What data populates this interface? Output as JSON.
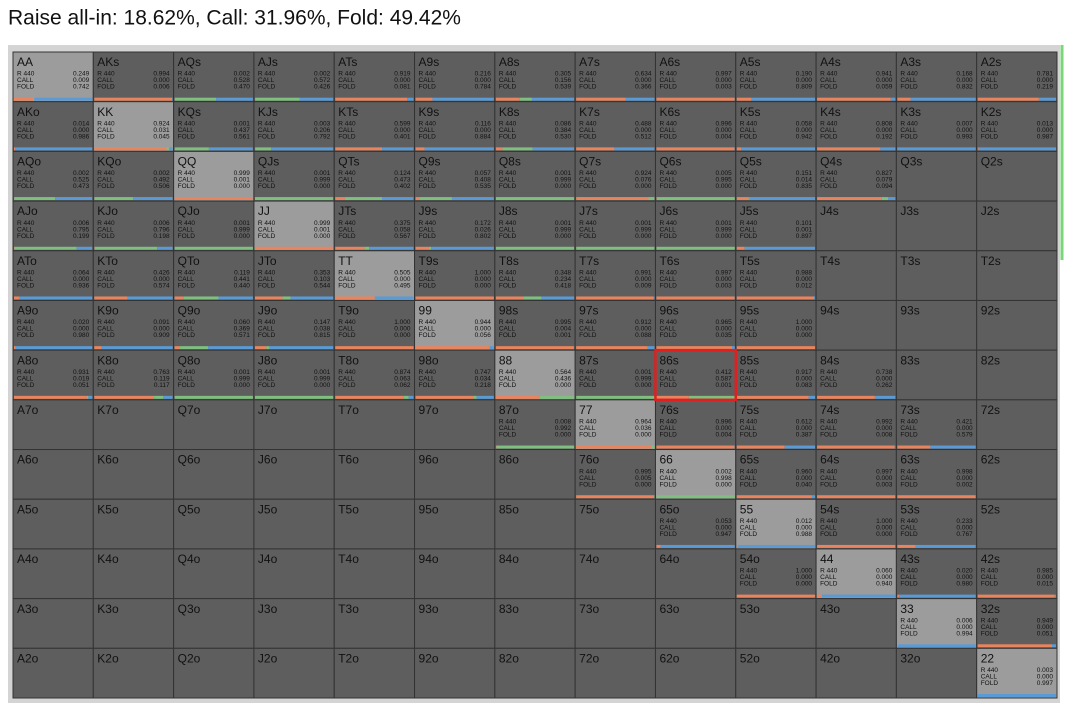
{
  "header": {
    "title": "Raise all-in: 18.62%, Call: 31.96%, Fold: 49.42%"
  },
  "grid": {
    "action_labels": [
      "R 440",
      "CALL",
      "FOLD"
    ],
    "rows": [
      [
        {
          "hand": "AA",
          "values": [
            "0.249",
            "0.009",
            "0.742"
          ]
        },
        {
          "hand": "AKs",
          "values": [
            "0.994",
            "0.000",
            "0.006"
          ]
        },
        {
          "hand": "AQs",
          "values": [
            "0.002",
            "0.528",
            "0.470"
          ]
        },
        {
          "hand": "AJs",
          "values": [
            "0.002",
            "0.572",
            "0.426"
          ]
        },
        {
          "hand": "ATs",
          "values": [
            "0.919",
            "0.000",
            "0.081"
          ]
        },
        {
          "hand": "A9s",
          "values": [
            "0.216",
            "0.000",
            "0.784"
          ]
        },
        {
          "hand": "A8s",
          "values": [
            "0.305",
            "0.156",
            "0.539"
          ]
        },
        {
          "hand": "A7s",
          "values": [
            "0.634",
            "0.000",
            "0.366"
          ]
        },
        {
          "hand": "A6s",
          "values": [
            "0.997",
            "0.000",
            "0.003"
          ]
        },
        {
          "hand": "A5s",
          "values": [
            "0.190",
            "0.000",
            "0.809"
          ]
        },
        {
          "hand": "A4s",
          "values": [
            "0.941",
            "0.000",
            "0.059"
          ]
        },
        {
          "hand": "A3s",
          "values": [
            "0.168",
            "0.000",
            "0.832"
          ]
        },
        {
          "hand": "A2s",
          "values": [
            "0.781",
            "0.000",
            "0.219"
          ]
        }
      ],
      [
        {
          "hand": "AKo",
          "values": [
            "0.014",
            "0.000",
            "0.986"
          ]
        },
        {
          "hand": "KK",
          "values": [
            "0.924",
            "0.031",
            "0.045"
          ]
        },
        {
          "hand": "KQs",
          "values": [
            "0.001",
            "0.437",
            "0.561"
          ]
        },
        {
          "hand": "KJs",
          "values": [
            "0.003",
            "0.206",
            "0.792"
          ]
        },
        {
          "hand": "KTs",
          "values": [
            "0.599",
            "0.000",
            "0.401"
          ]
        },
        {
          "hand": "K9s",
          "values": [
            "0.116",
            "0.000",
            "0.884"
          ]
        },
        {
          "hand": "K8s",
          "values": [
            "0.086",
            "0.384",
            "0.530"
          ]
        },
        {
          "hand": "K7s",
          "values": [
            "0.488",
            "0.000",
            "0.512"
          ]
        },
        {
          "hand": "K6s",
          "values": [
            "0.996",
            "0.000",
            "0.004"
          ]
        },
        {
          "hand": "K5s",
          "values": [
            "0.058",
            "0.000",
            "0.942"
          ]
        },
        {
          "hand": "K4s",
          "values": [
            "0.808",
            "0.000",
            "0.192"
          ]
        },
        {
          "hand": "K3s",
          "values": [
            "0.007",
            "0.000",
            "0.993"
          ]
        },
        {
          "hand": "K2s",
          "values": [
            "0.013",
            "0.000",
            "0.987"
          ]
        }
      ],
      [
        {
          "hand": "AQo",
          "values": [
            "0.002",
            "0.525",
            "0.473"
          ]
        },
        {
          "hand": "KQo",
          "values": [
            "0.002",
            "0.492",
            "0.506"
          ]
        },
        {
          "hand": "QQ",
          "values": [
            "0.999",
            "0.001",
            "0.000"
          ]
        },
        {
          "hand": "QJs",
          "values": [
            "0.001",
            "0.999",
            "0.000"
          ]
        },
        {
          "hand": "QTs",
          "values": [
            "0.124",
            "0.473",
            "0.402"
          ]
        },
        {
          "hand": "Q9s",
          "values": [
            "0.057",
            "0.408",
            "0.535"
          ]
        },
        {
          "hand": "Q8s",
          "values": [
            "0.001",
            "0.999",
            "0.000"
          ]
        },
        {
          "hand": "Q7s",
          "values": [
            "0.924",
            "0.076",
            "0.000"
          ]
        },
        {
          "hand": "Q6s",
          "values": [
            "0.005",
            "0.995",
            "0.000"
          ]
        },
        {
          "hand": "Q5s",
          "values": [
            "0.151",
            "0.014",
            "0.835"
          ]
        },
        {
          "hand": "Q4s",
          "values": [
            "0.827",
            "0.079",
            "0.094"
          ]
        },
        {
          "hand": "Q3s"
        },
        {
          "hand": "Q2s"
        }
      ],
      [
        {
          "hand": "AJo",
          "values": [
            "0.006",
            "0.795",
            "0.199"
          ]
        },
        {
          "hand": "KJo",
          "values": [
            "0.006",
            "0.796",
            "0.198"
          ]
        },
        {
          "hand": "QJo",
          "values": [
            "0.001",
            "0.999",
            "0.000"
          ]
        },
        {
          "hand": "JJ",
          "values": [
            "0.999",
            "0.001",
            "0.000"
          ]
        },
        {
          "hand": "JTs",
          "values": [
            "0.375",
            "0.058",
            "0.567"
          ]
        },
        {
          "hand": "J9s",
          "values": [
            "0.172",
            "0.026",
            "0.802"
          ]
        },
        {
          "hand": "J8s",
          "values": [
            "0.001",
            "0.999",
            "0.000"
          ]
        },
        {
          "hand": "J7s",
          "values": [
            "0.001",
            "0.999",
            "0.000"
          ]
        },
        {
          "hand": "J6s",
          "values": [
            "0.001",
            "0.999",
            "0.000"
          ]
        },
        {
          "hand": "J5s",
          "values": [
            "0.101",
            "0.001",
            "0.897"
          ]
        },
        {
          "hand": "J4s"
        },
        {
          "hand": "J3s"
        },
        {
          "hand": "J2s"
        }
      ],
      [
        {
          "hand": "ATo",
          "values": [
            "0.064",
            "0.000",
            "0.936"
          ]
        },
        {
          "hand": "KTo",
          "values": [
            "0.426",
            "0.000",
            "0.574"
          ]
        },
        {
          "hand": "QTo",
          "values": [
            "0.119",
            "0.441",
            "0.440"
          ]
        },
        {
          "hand": "JTo",
          "values": [
            "0.353",
            "0.103",
            "0.544"
          ]
        },
        {
          "hand": "TT",
          "values": [
            "0.505",
            "0.000",
            "0.495"
          ]
        },
        {
          "hand": "T9s",
          "values": [
            "1.000",
            "0.000",
            "0.000"
          ]
        },
        {
          "hand": "T8s",
          "values": [
            "0.348",
            "0.234",
            "0.418"
          ]
        },
        {
          "hand": "T7s",
          "values": [
            "0.991",
            "0.000",
            "0.009"
          ]
        },
        {
          "hand": "T6s",
          "values": [
            "0.997",
            "0.000",
            "0.003"
          ]
        },
        {
          "hand": "T5s",
          "values": [
            "0.988",
            "0.000",
            "0.012"
          ]
        },
        {
          "hand": "T4s"
        },
        {
          "hand": "T3s"
        },
        {
          "hand": "T2s"
        }
      ],
      [
        {
          "hand": "A9o",
          "values": [
            "0.020",
            "0.000",
            "0.980"
          ]
        },
        {
          "hand": "K9o",
          "values": [
            "0.091",
            "0.000",
            "0.909"
          ]
        },
        {
          "hand": "Q9o",
          "values": [
            "0.060",
            "0.369",
            "0.571"
          ]
        },
        {
          "hand": "J9o",
          "values": [
            "0.147",
            "0.038",
            "0.815"
          ]
        },
        {
          "hand": "T9o",
          "values": [
            "1.000",
            "0.000",
            "0.000"
          ]
        },
        {
          "hand": "99",
          "values": [
            "0.944",
            "0.000",
            "0.056"
          ]
        },
        {
          "hand": "98s",
          "values": [
            "0.995",
            "0.004",
            "0.001"
          ]
        },
        {
          "hand": "97s",
          "values": [
            "0.912",
            "0.000",
            "0.088"
          ]
        },
        {
          "hand": "96s",
          "values": [
            "0.965",
            "0.000",
            "0.035"
          ]
        },
        {
          "hand": "95s",
          "values": [
            "1.000",
            "0.000",
            "0.000"
          ]
        },
        {
          "hand": "94s"
        },
        {
          "hand": "93s"
        },
        {
          "hand": "92s"
        }
      ],
      [
        {
          "hand": "A8o",
          "values": [
            "0.931",
            "0.019",
            "0.051"
          ]
        },
        {
          "hand": "K8o",
          "values": [
            "0.763",
            "0.119",
            "0.117"
          ]
        },
        {
          "hand": "Q8o",
          "values": [
            "0.001",
            "0.999",
            "0.000"
          ]
        },
        {
          "hand": "J8o",
          "values": [
            "0.001",
            "0.999",
            "0.000"
          ]
        },
        {
          "hand": "T8o",
          "values": [
            "0.874",
            "0.063",
            "0.062"
          ]
        },
        {
          "hand": "98o",
          "values": [
            "0.747",
            "0.034",
            "0.218"
          ]
        },
        {
          "hand": "88",
          "values": [
            "0.564",
            "0.436",
            "0.000"
          ]
        },
        {
          "hand": "87s",
          "values": [
            "0.001",
            "0.999",
            "0.000"
          ]
        },
        {
          "hand": "86s",
          "values": [
            "0.412",
            "0.587",
            "0.001"
          ]
        },
        {
          "hand": "85s",
          "values": [
            "0.917",
            "0.000",
            "0.083"
          ]
        },
        {
          "hand": "84s",
          "values": [
            "0.738",
            "0.000",
            "0.262"
          ]
        },
        {
          "hand": "83s"
        },
        {
          "hand": "82s"
        }
      ],
      [
        {
          "hand": "A7o"
        },
        {
          "hand": "K7o"
        },
        {
          "hand": "Q7o"
        },
        {
          "hand": "J7o"
        },
        {
          "hand": "T7o"
        },
        {
          "hand": "97o"
        },
        {
          "hand": "87o",
          "values": [
            "0.008",
            "0.992",
            "0.000"
          ]
        },
        {
          "hand": "77",
          "values": [
            "0.964",
            "0.036",
            "0.000"
          ]
        },
        {
          "hand": "76s",
          "values": [
            "0.996",
            "0.000",
            "0.004"
          ]
        },
        {
          "hand": "75s",
          "values": [
            "0.612",
            "0.000",
            "0.387"
          ]
        },
        {
          "hand": "74s",
          "values": [
            "0.992",
            "0.000",
            "0.008"
          ]
        },
        {
          "hand": "73s",
          "values": [
            "0.421",
            "0.000",
            "0.579"
          ]
        },
        {
          "hand": "72s"
        }
      ],
      [
        {
          "hand": "A6o"
        },
        {
          "hand": "K6o"
        },
        {
          "hand": "Q6o"
        },
        {
          "hand": "J6o"
        },
        {
          "hand": "T6o"
        },
        {
          "hand": "96o"
        },
        {
          "hand": "86o"
        },
        {
          "hand": "76o",
          "values": [
            "0.995",
            "0.005",
            "0.000"
          ]
        },
        {
          "hand": "66",
          "values": [
            "0.002",
            "0.998",
            "0.000"
          ]
        },
        {
          "hand": "65s",
          "values": [
            "0.960",
            "0.000",
            "0.040"
          ]
        },
        {
          "hand": "64s",
          "values": [
            "0.997",
            "0.000",
            "0.003"
          ]
        },
        {
          "hand": "63s",
          "values": [
            "0.998",
            "0.000",
            "0.002"
          ]
        },
        {
          "hand": "62s"
        }
      ],
      [
        {
          "hand": "A5o"
        },
        {
          "hand": "K5o"
        },
        {
          "hand": "Q5o"
        },
        {
          "hand": "J5o"
        },
        {
          "hand": "T5o"
        },
        {
          "hand": "95o"
        },
        {
          "hand": "85o"
        },
        {
          "hand": "75o"
        },
        {
          "hand": "65o",
          "values": [
            "0.053",
            "0.000",
            "0.947"
          ]
        },
        {
          "hand": "55",
          "values": [
            "0.012",
            "0.000",
            "0.988"
          ]
        },
        {
          "hand": "54s",
          "values": [
            "1.000",
            "0.000",
            "0.000"
          ]
        },
        {
          "hand": "53s",
          "values": [
            "0.233",
            "0.000",
            "0.767"
          ]
        },
        {
          "hand": "52s"
        }
      ],
      [
        {
          "hand": "A4o"
        },
        {
          "hand": "K4o"
        },
        {
          "hand": "Q4o"
        },
        {
          "hand": "J4o"
        },
        {
          "hand": "T4o"
        },
        {
          "hand": "94o"
        },
        {
          "hand": "84o"
        },
        {
          "hand": "74o"
        },
        {
          "hand": "64o"
        },
        {
          "hand": "54o",
          "values": [
            "1.000",
            "0.000",
            "0.000"
          ]
        },
        {
          "hand": "44",
          "values": [
            "0.060",
            "0.000",
            "0.940"
          ]
        },
        {
          "hand": "43s",
          "values": [
            "0.020",
            "0.000",
            "0.980"
          ]
        },
        {
          "hand": "42s",
          "values": [
            "0.985",
            "0.000",
            "0.015"
          ]
        }
      ],
      [
        {
          "hand": "A3o"
        },
        {
          "hand": "K3o"
        },
        {
          "hand": "Q3o"
        },
        {
          "hand": "J3o"
        },
        {
          "hand": "T3o"
        },
        {
          "hand": "93o"
        },
        {
          "hand": "83o"
        },
        {
          "hand": "73o"
        },
        {
          "hand": "63o"
        },
        {
          "hand": "53o"
        },
        {
          "hand": "43o"
        },
        {
          "hand": "33",
          "values": [
            "0.006",
            "0.000",
            "0.994"
          ]
        },
        {
          "hand": "32s",
          "values": [
            "0.949",
            "0.000",
            "0.051"
          ]
        }
      ],
      [
        {
          "hand": "A2o"
        },
        {
          "hand": "K2o"
        },
        {
          "hand": "Q2o"
        },
        {
          "hand": "J2o"
        },
        {
          "hand": "T2o"
        },
        {
          "hand": "92o"
        },
        {
          "hand": "82o"
        },
        {
          "hand": "72o"
        },
        {
          "hand": "62o"
        },
        {
          "hand": "52o"
        },
        {
          "hand": "42o"
        },
        {
          "hand": "32o"
        },
        {
          "hand": "22",
          "values": [
            "0.003",
            "0.000",
            "0.997"
          ]
        }
      ]
    ]
  }
}
